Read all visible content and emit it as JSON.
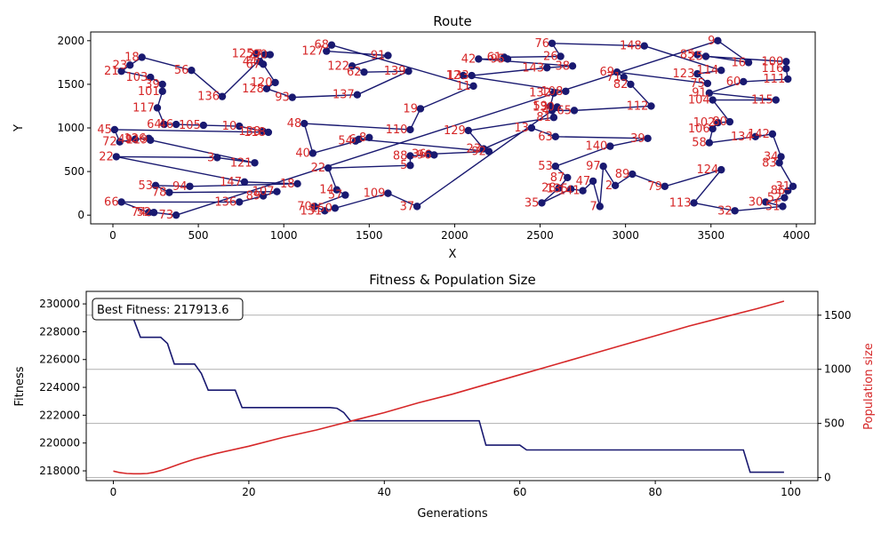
{
  "chart_data": [
    {
      "type": "line",
      "title": "Route",
      "xlabel": "X",
      "ylabel": "Y",
      "xlim": [
        -130,
        4110
      ],
      "ylim": [
        -100,
        2100
      ],
      "xticks": [
        "0",
        "500",
        "1000",
        "1500",
        "2000",
        "2500",
        "3000",
        "3500",
        "4000"
      ],
      "xtick_values": [
        0,
        500,
        1000,
        1500,
        2000,
        2500,
        3000,
        3500,
        4000
      ],
      "yticks": [
        "0",
        "500",
        "1000",
        "1500",
        "2000"
      ],
      "ytick_values": [
        0,
        500,
        1000,
        1500,
        2000
      ],
      "line_color": "#191970",
      "label_color": "#d62728",
      "route_order": "visit order as listed in points",
      "points": [
        {
          "label": "9",
          "x": 3540,
          "y": 2000
        },
        {
          "label": "16",
          "x": 3720,
          "y": 1750
        },
        {
          "label": "85",
          "x": 3420,
          "y": 1840
        },
        {
          "label": "25",
          "x": 3470,
          "y": 1820
        },
        {
          "label": "100",
          "x": 3940,
          "y": 1760
        },
        {
          "label": "116",
          "x": 3940,
          "y": 1680
        },
        {
          "label": "111",
          "x": 3950,
          "y": 1560
        },
        {
          "label": "60",
          "x": 3690,
          "y": 1530
        },
        {
          "label": "91",
          "x": 3490,
          "y": 1400
        },
        {
          "label": "115",
          "x": 3880,
          "y": 1320
        },
        {
          "label": "104",
          "x": 3510,
          "y": 1320
        },
        {
          "label": "80",
          "x": 3610,
          "y": 1070
        },
        {
          "label": "102",
          "x": 3540,
          "y": 1060
        },
        {
          "label": "106",
          "x": 3510,
          "y": 990
        },
        {
          "label": "58",
          "x": 3490,
          "y": 830
        },
        {
          "label": "134",
          "x": 3760,
          "y": 900
        },
        {
          "label": "142",
          "x": 3860,
          "y": 930
        },
        {
          "label": "34",
          "x": 3910,
          "y": 670
        },
        {
          "label": "83",
          "x": 3900,
          "y": 600
        },
        {
          "label": "31",
          "x": 3980,
          "y": 330
        },
        {
          "label": "86",
          "x": 3950,
          "y": 280
        },
        {
          "label": "52",
          "x": 3930,
          "y": 200
        },
        {
          "label": "30",
          "x": 3820,
          "y": 150
        },
        {
          "label": "51",
          "x": 3920,
          "y": 100
        },
        {
          "label": "32",
          "x": 3640,
          "y": 50
        },
        {
          "label": "113",
          "x": 3400,
          "y": 140
        },
        {
          "label": "124",
          "x": 3560,
          "y": 520
        },
        {
          "label": "79",
          "x": 3230,
          "y": 330
        },
        {
          "label": "89",
          "x": 3040,
          "y": 470
        },
        {
          "label": "2",
          "x": 2940,
          "y": 340
        },
        {
          "label": "97",
          "x": 2870,
          "y": 560
        },
        {
          "label": "7",
          "x": 2850,
          "y": 100
        },
        {
          "label": "47",
          "x": 2810,
          "y": 390
        },
        {
          "label": "141",
          "x": 2750,
          "y": 280
        },
        {
          "label": "135",
          "x": 2680,
          "y": 300
        },
        {
          "label": "35",
          "x": 2510,
          "y": 140
        },
        {
          "label": "28",
          "x": 2610,
          "y": 310
        },
        {
          "label": "87",
          "x": 2660,
          "y": 430
        },
        {
          "label": "53",
          "x": 2590,
          "y": 560
        },
        {
          "label": "140",
          "x": 2910,
          "y": 790
        },
        {
          "label": "39",
          "x": 3130,
          "y": 880
        },
        {
          "label": "63",
          "x": 2590,
          "y": 900
        },
        {
          "label": "13",
          "x": 2450,
          "y": 1000
        },
        {
          "label": "23",
          "x": 2170,
          "y": 760
        },
        {
          "label": "129",
          "x": 2080,
          "y": 970
        },
        {
          "label": "81",
          "x": 2580,
          "y": 1120
        },
        {
          "label": "4",
          "x": 2570,
          "y": 1200
        },
        {
          "label": "65",
          "x": 2700,
          "y": 1200
        },
        {
          "label": "112",
          "x": 3150,
          "y": 1250
        },
        {
          "label": "82",
          "x": 3030,
          "y": 1500
        },
        {
          "label": "71",
          "x": 2990,
          "y": 1580
        },
        {
          "label": "69",
          "x": 2950,
          "y": 1640
        },
        {
          "label": "75",
          "x": 3480,
          "y": 1510
        },
        {
          "label": "123",
          "x": 3420,
          "y": 1620
        },
        {
          "label": "114",
          "x": 3560,
          "y": 1660
        },
        {
          "label": "148",
          "x": 3110,
          "y": 1940
        },
        {
          "label": "76",
          "x": 2570,
          "y": 1970
        },
        {
          "label": "26",
          "x": 2620,
          "y": 1820
        },
        {
          "label": "61",
          "x": 2290,
          "y": 1810
        },
        {
          "label": "95",
          "x": 2310,
          "y": 1790
        },
        {
          "label": "42",
          "x": 2140,
          "y": 1790
        },
        {
          "label": "38",
          "x": 2690,
          "y": 1710
        },
        {
          "label": "143",
          "x": 2540,
          "y": 1690
        },
        {
          "label": "133",
          "x": 2100,
          "y": 1600
        },
        {
          "label": "12",
          "x": 2050,
          "y": 1600
        },
        {
          "label": "108",
          "x": 2650,
          "y": 1420
        },
        {
          "label": "132",
          "x": 2580,
          "y": 1400
        },
        {
          "label": "59",
          "x": 2560,
          "y": 1250
        },
        {
          "label": "130",
          "x": 2600,
          "y": 1240
        },
        {
          "label": "37",
          "x": 1780,
          "y": 100
        },
        {
          "label": "109",
          "x": 1610,
          "y": 250
        },
        {
          "label": "150",
          "x": 1300,
          "y": 80
        },
        {
          "label": "131",
          "x": 1240,
          "y": 50
        },
        {
          "label": "70",
          "x": 1180,
          "y": 100
        },
        {
          "label": "57",
          "x": 1360,
          "y": 230
        },
        {
          "label": "14",
          "x": 1310,
          "y": 290
        },
        {
          "label": "22",
          "x": 1260,
          "y": 540
        },
        {
          "label": "5",
          "x": 1740,
          "y": 570
        },
        {
          "label": "88",
          "x": 1740,
          "y": 680
        },
        {
          "label": "96",
          "x": 1880,
          "y": 690
        },
        {
          "label": "36",
          "x": 1850,
          "y": 700
        },
        {
          "label": "92",
          "x": 2200,
          "y": 730
        },
        {
          "label": "6",
          "x": 1440,
          "y": 870
        },
        {
          "label": "54",
          "x": 1420,
          "y": 850
        },
        {
          "label": "8",
          "x": 1500,
          "y": 890
        },
        {
          "label": "40",
          "x": 1170,
          "y": 710
        },
        {
          "label": "48",
          "x": 1120,
          "y": 1050
        },
        {
          "label": "110",
          "x": 1740,
          "y": 980
        },
        {
          "label": "19",
          "x": 1800,
          "y": 1220
        },
        {
          "label": "11",
          "x": 2110,
          "y": 1480
        },
        {
          "label": "68",
          "x": 1280,
          "y": 1950
        },
        {
          "label": "127",
          "x": 1250,
          "y": 1880
        },
        {
          "label": "91b",
          "x": 1610,
          "y": 1830
        },
        {
          "label": "122",
          "x": 1400,
          "y": 1710
        },
        {
          "label": "62",
          "x": 1470,
          "y": 1640
        },
        {
          "label": "139",
          "x": 1730,
          "y": 1650
        },
        {
          "label": "137",
          "x": 1430,
          "y": 1380
        },
        {
          "label": "93",
          "x": 1050,
          "y": 1350
        },
        {
          "label": "128",
          "x": 900,
          "y": 1450
        },
        {
          "label": "120",
          "x": 950,
          "y": 1520
        },
        {
          "label": "67",
          "x": 880,
          "y": 1730
        },
        {
          "label": "44",
          "x": 860,
          "y": 1760
        },
        {
          "label": "125",
          "x": 840,
          "y": 1850
        },
        {
          "label": "90",
          "x": 920,
          "y": 1840
        },
        {
          "label": "27",
          "x": 890,
          "y": 1840
        },
        {
          "label": "136",
          "x": 640,
          "y": 1360
        },
        {
          "label": "56",
          "x": 460,
          "y": 1660
        },
        {
          "label": "18",
          "x": 170,
          "y": 1810
        },
        {
          "label": "23b",
          "x": 100,
          "y": 1720
        },
        {
          "label": "21",
          "x": 50,
          "y": 1650
        },
        {
          "label": "103",
          "x": 220,
          "y": 1580
        },
        {
          "label": "39b",
          "x": 290,
          "y": 1500
        },
        {
          "label": "101",
          "x": 290,
          "y": 1420
        },
        {
          "label": "117",
          "x": 260,
          "y": 1230
        },
        {
          "label": "64",
          "x": 300,
          "y": 1040
        },
        {
          "label": "46",
          "x": 370,
          "y": 1040
        },
        {
          "label": "105",
          "x": 530,
          "y": 1030
        },
        {
          "label": "10",
          "x": 740,
          "y": 1020
        },
        {
          "label": "138",
          "x": 880,
          "y": 960
        },
        {
          "label": "118",
          "x": 910,
          "y": 950
        },
        {
          "label": "45",
          "x": 10,
          "y": 980
        },
        {
          "label": "72",
          "x": 40,
          "y": 840
        },
        {
          "label": "49",
          "x": 130,
          "y": 870
        },
        {
          "label": "126",
          "x": 210,
          "y": 880
        },
        {
          "label": "119",
          "x": 220,
          "y": 860
        },
        {
          "label": "121",
          "x": 830,
          "y": 600
        },
        {
          "label": "3",
          "x": 610,
          "y": 660
        },
        {
          "label": "22b",
          "x": 20,
          "y": 670
        },
        {
          "label": "147",
          "x": 770,
          "y": 380
        },
        {
          "label": "18b",
          "x": 1080,
          "y": 360
        },
        {
          "label": "94",
          "x": 450,
          "y": 330
        },
        {
          "label": "53b",
          "x": 250,
          "y": 340
        },
        {
          "label": "78",
          "x": 330,
          "y": 260
        },
        {
          "label": "107",
          "x": 960,
          "y": 270
        },
        {
          "label": "89b",
          "x": 880,
          "y": 220
        },
        {
          "label": "136b",
          "x": 740,
          "y": 150
        },
        {
          "label": "66",
          "x": 50,
          "y": 150
        },
        {
          "label": "74",
          "x": 210,
          "y": 30
        },
        {
          "label": "52b",
          "x": 240,
          "y": 30
        },
        {
          "label": "73",
          "x": 370,
          "y": 0
        }
      ]
    },
    {
      "type": "line",
      "title": "Fitness & Population Size",
      "xlabel": "Generations",
      "ylabel": "Fitness",
      "y2label": "Population size",
      "xlim": [
        -4,
        104
      ],
      "ylim": [
        217300,
        230900
      ],
      "y2lim": [
        -28,
        1720
      ],
      "xticks": [
        "0",
        "20",
        "40",
        "60",
        "80",
        "100"
      ],
      "xtick_values": [
        0,
        20,
        40,
        60,
        80,
        100
      ],
      "yticks": [
        "218000",
        "220000",
        "222000",
        "224000",
        "226000",
        "228000",
        "230000"
      ],
      "ytick_values": [
        218000,
        220000,
        222000,
        224000,
        226000,
        228000,
        230000
      ],
      "y2ticks": [
        "0",
        "500",
        "1000",
        "1500"
      ],
      "y2tick_values": [
        0,
        500,
        1000,
        1500
      ],
      "annotation": "Best Fitness: 217913.6",
      "series": [
        {
          "axis": "left",
          "color": "#191970",
          "x": [
            0,
            2,
            3,
            4,
            5,
            6,
            7,
            8,
            9,
            10,
            11,
            12,
            13,
            14,
            15,
            16,
            17,
            18,
            19,
            20,
            30,
            32,
            33,
            34,
            35,
            36,
            50,
            53,
            54,
            55,
            56,
            60,
            61,
            62,
            70,
            80,
            90,
            93,
            94,
            95,
            99
          ],
          "values": [
            228900,
            228900,
            228900,
            227600,
            227600,
            227600,
            227600,
            227150,
            225680,
            225680,
            225680,
            225680,
            225000,
            223800,
            223800,
            223800,
            223800,
            223800,
            222550,
            222550,
            222550,
            222550,
            222500,
            222200,
            221600,
            221600,
            221600,
            221600,
            221600,
            219850,
            219850,
            219850,
            219500,
            219500,
            219500,
            219500,
            219500,
            219500,
            217900,
            217900,
            217900
          ]
        },
        {
          "axis": "right",
          "color": "#d62728",
          "x": [
            0,
            1,
            2,
            3,
            4,
            5,
            6,
            7,
            8,
            10,
            12,
            15,
            20,
            25,
            30,
            35,
            40,
            45,
            50,
            55,
            60,
            65,
            70,
            75,
            80,
            85,
            90,
            95,
            99
          ],
          "values": [
            60,
            45,
            38,
            35,
            35,
            38,
            48,
            65,
            85,
            130,
            170,
            220,
            290,
            370,
            440,
            520,
            600,
            690,
            770,
            860,
            950,
            1040,
            1130,
            1220,
            1310,
            1400,
            1480,
            1560,
            1630
          ]
        }
      ],
      "grid": "horizontal"
    }
  ]
}
